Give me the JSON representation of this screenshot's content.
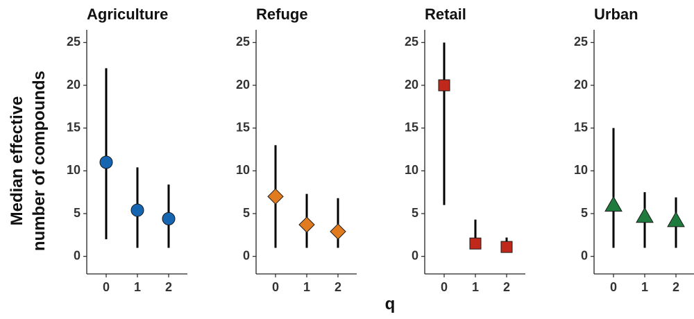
{
  "chart_data": {
    "type": "scatter",
    "style": "point-range faceted plot",
    "xlabel": "q",
    "ylabel_lines": [
      "Median effective",
      "number of compounds"
    ],
    "ylim": [
      -1,
      26
    ],
    "yticks": [
      0,
      5,
      10,
      15,
      20,
      25
    ],
    "xticks": [
      0,
      1,
      2
    ],
    "grid": false,
    "legend": "none",
    "panels": [
      {
        "title": "Agriculture",
        "marker": "circle",
        "color": "#1565b0",
        "points": [
          {
            "q": 0,
            "median": 11.0,
            "low": 2,
            "high": 22
          },
          {
            "q": 1,
            "median": 5.4,
            "low": 1,
            "high": 10.4
          },
          {
            "q": 2,
            "median": 4.4,
            "low": 1,
            "high": 8.4
          }
        ]
      },
      {
        "title": "Refuge",
        "marker": "diamond",
        "color": "#e07b20",
        "points": [
          {
            "q": 0,
            "median": 7.0,
            "low": 1,
            "high": 13
          },
          {
            "q": 1,
            "median": 3.7,
            "low": 1,
            "high": 7.3
          },
          {
            "q": 2,
            "median": 2.9,
            "low": 1,
            "high": 6.8
          }
        ]
      },
      {
        "title": "Retail",
        "marker": "square",
        "color": "#c0281c",
        "points": [
          {
            "q": 0,
            "median": 20.0,
            "low": 6,
            "high": 25
          },
          {
            "q": 1,
            "median": 1.5,
            "low": 1,
            "high": 4.3
          },
          {
            "q": 2,
            "median": 1.1,
            "low": 1,
            "high": 2.2
          }
        ]
      },
      {
        "title": "Urban",
        "marker": "triangle",
        "color": "#1f7a3d",
        "points": [
          {
            "q": 0,
            "median": 6.0,
            "low": 1,
            "high": 15
          },
          {
            "q": 1,
            "median": 4.7,
            "low": 1,
            "high": 7.5
          },
          {
            "q": 2,
            "median": 4.2,
            "low": 1,
            "high": 6.9
          }
        ]
      }
    ]
  }
}
